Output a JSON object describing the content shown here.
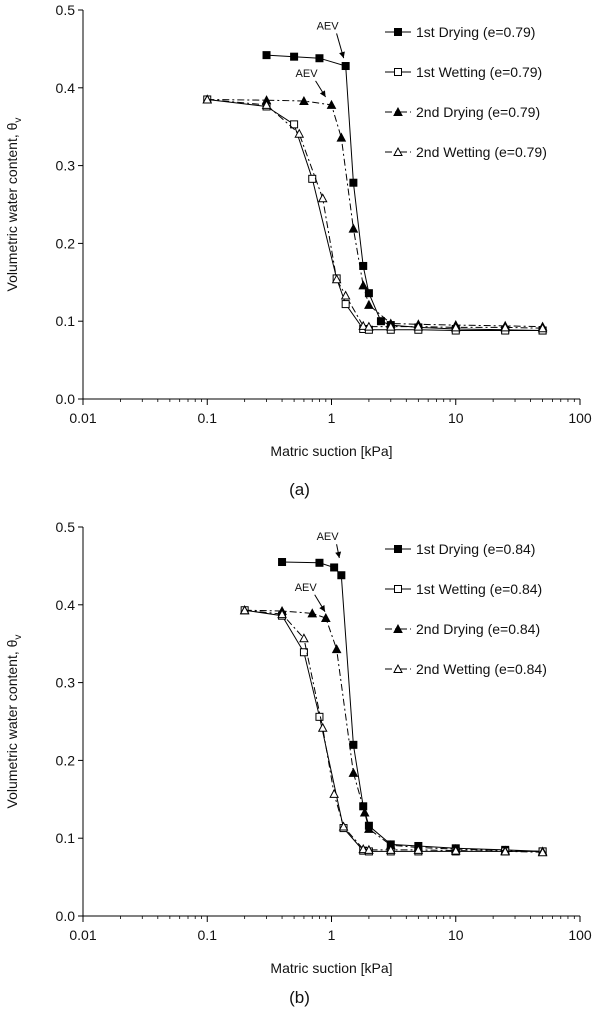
{
  "chart_data": [
    {
      "type": "line",
      "caption": "(a)",
      "xlabel": "Matric suction [kPa]",
      "ylabel": "Volumetric water content, θ",
      "ylabel_sub": "v",
      "xscale": "log",
      "xlim": [
        0.01,
        100
      ],
      "ylim": [
        0.0,
        0.5
      ],
      "xticks": [
        0.01,
        0.1,
        1,
        10,
        100
      ],
      "xtick_labels": [
        "0.01",
        "0.1",
        "1",
        "10",
        "100"
      ],
      "yticks": [
        0.0,
        0.1,
        0.2,
        0.3,
        0.4,
        0.5
      ],
      "ytick_labels": [
        "0.0",
        "0.1",
        "0.2",
        "0.3",
        "0.4",
        "0.5"
      ],
      "grid": false,
      "legend": "top-right",
      "annotations": [
        {
          "text": "AEV",
          "x": 0.93,
          "y": 0.475,
          "to_x": 1.3,
          "to_y": 0.433
        },
        {
          "text": "AEV",
          "x": 0.63,
          "y": 0.414,
          "to_x": 0.93,
          "to_y": 0.383
        }
      ],
      "series": [
        {
          "name": "1st Drying (e=0.79)",
          "marker": "square-filled",
          "dash": "solid",
          "x": [
            0.3,
            0.5,
            0.8,
            1.3,
            1.5,
            1.8,
            2,
            2.5,
            3,
            5,
            10,
            25,
            50
          ],
          "y": [
            0.442,
            0.44,
            0.438,
            0.428,
            0.278,
            0.171,
            0.136,
            0.1,
            0.095,
            0.092,
            0.09,
            0.089,
            0.088
          ]
        },
        {
          "name": "1st Wetting (e=0.79)",
          "marker": "square-open",
          "dash": "solid",
          "x": [
            0.1,
            0.3,
            0.5,
            0.7,
            1.1,
            1.3,
            1.8,
            2,
            3,
            5,
            10,
            25,
            50
          ],
          "y": [
            0.385,
            0.376,
            0.353,
            0.283,
            0.155,
            0.122,
            0.09,
            0.089,
            0.089,
            0.089,
            0.088,
            0.088,
            0.088
          ]
        },
        {
          "name": "2nd Drying (e=0.79)",
          "marker": "triangle-filled",
          "dash": "dashdot",
          "x": [
            0.1,
            0.3,
            0.6,
            1.0,
            1.2,
            1.5,
            1.8,
            2,
            3,
            5,
            10,
            25,
            50
          ],
          "y": [
            0.385,
            0.384,
            0.383,
            0.378,
            0.336,
            0.219,
            0.146,
            0.121,
            0.097,
            0.096,
            0.095,
            0.094,
            0.093
          ]
        },
        {
          "name": "2nd Wetting (e=0.79)",
          "marker": "triangle-open",
          "dash": "dashdot",
          "x": [
            0.1,
            0.3,
            0.55,
            0.85,
            1.1,
            1.3,
            1.8,
            2,
            3,
            5,
            10,
            25,
            50
          ],
          "y": [
            0.385,
            0.378,
            0.341,
            0.258,
            0.154,
            0.133,
            0.094,
            0.093,
            0.093,
            0.093,
            0.092,
            0.092,
            0.091
          ]
        }
      ]
    },
    {
      "type": "line",
      "caption": "(b)",
      "xlabel": "Matric suction [kPa]",
      "ylabel": "Volumetric water content, θ",
      "ylabel_sub": "v",
      "xscale": "log",
      "xlim": [
        0.01,
        100
      ],
      "ylim": [
        0.0,
        0.5
      ],
      "xticks": [
        0.01,
        0.1,
        1,
        10,
        100
      ],
      "xtick_labels": [
        "0.01",
        "0.1",
        "1",
        "10",
        "100"
      ],
      "yticks": [
        0.0,
        0.1,
        0.2,
        0.3,
        0.4,
        0.5
      ],
      "ytick_labels": [
        "0.0",
        "0.1",
        "0.2",
        "0.3",
        "0.4",
        "0.5"
      ],
      "grid": false,
      "legend": "top-right",
      "annotations": [
        {
          "text": "AEV",
          "x": 0.93,
          "y": 0.483,
          "to_x": 1.2,
          "to_y": 0.455
        },
        {
          "text": "AEV",
          "x": 0.62,
          "y": 0.418,
          "to_x": 0.92,
          "to_y": 0.386
        }
      ],
      "series": [
        {
          "name": "1st Drying (e=0.84)",
          "marker": "square-filled",
          "dash": "solid",
          "x": [
            0.4,
            0.8,
            1.05,
            1.2,
            1.5,
            1.8,
            2,
            3,
            5,
            10,
            25,
            50
          ],
          "y": [
            0.455,
            0.454,
            0.448,
            0.438,
            0.22,
            0.141,
            0.116,
            0.092,
            0.09,
            0.087,
            0.085,
            0.083
          ]
        },
        {
          "name": "1st Wetting (e=0.84)",
          "marker": "square-open",
          "dash": "solid",
          "x": [
            0.2,
            0.4,
            0.6,
            0.8,
            1.25,
            1.8,
            2,
            3,
            5,
            10,
            25,
            50
          ],
          "y": [
            0.393,
            0.386,
            0.339,
            0.256,
            0.113,
            0.084,
            0.083,
            0.083,
            0.083,
            0.083,
            0.083,
            0.083
          ]
        },
        {
          "name": "2nd Drying (e=0.84)",
          "marker": "triangle-filled",
          "dash": "dashdot",
          "x": [
            0.2,
            0.4,
            0.7,
            0.9,
            1.1,
            1.5,
            1.85,
            2,
            3,
            5,
            10,
            25,
            50
          ],
          "y": [
            0.393,
            0.392,
            0.389,
            0.383,
            0.343,
            0.184,
            0.133,
            0.112,
            0.091,
            0.088,
            0.086,
            0.084,
            0.083
          ]
        },
        {
          "name": "2nd Wetting (e=0.84)",
          "marker": "triangle-open",
          "dash": "dashdot",
          "x": [
            0.2,
            0.4,
            0.6,
            0.85,
            1.05,
            1.25,
            1.8,
            2,
            3,
            5,
            10,
            25,
            50
          ],
          "y": [
            0.393,
            0.388,
            0.357,
            0.242,
            0.157,
            0.115,
            0.086,
            0.085,
            0.085,
            0.085,
            0.084,
            0.083,
            0.082
          ]
        }
      ]
    }
  ]
}
